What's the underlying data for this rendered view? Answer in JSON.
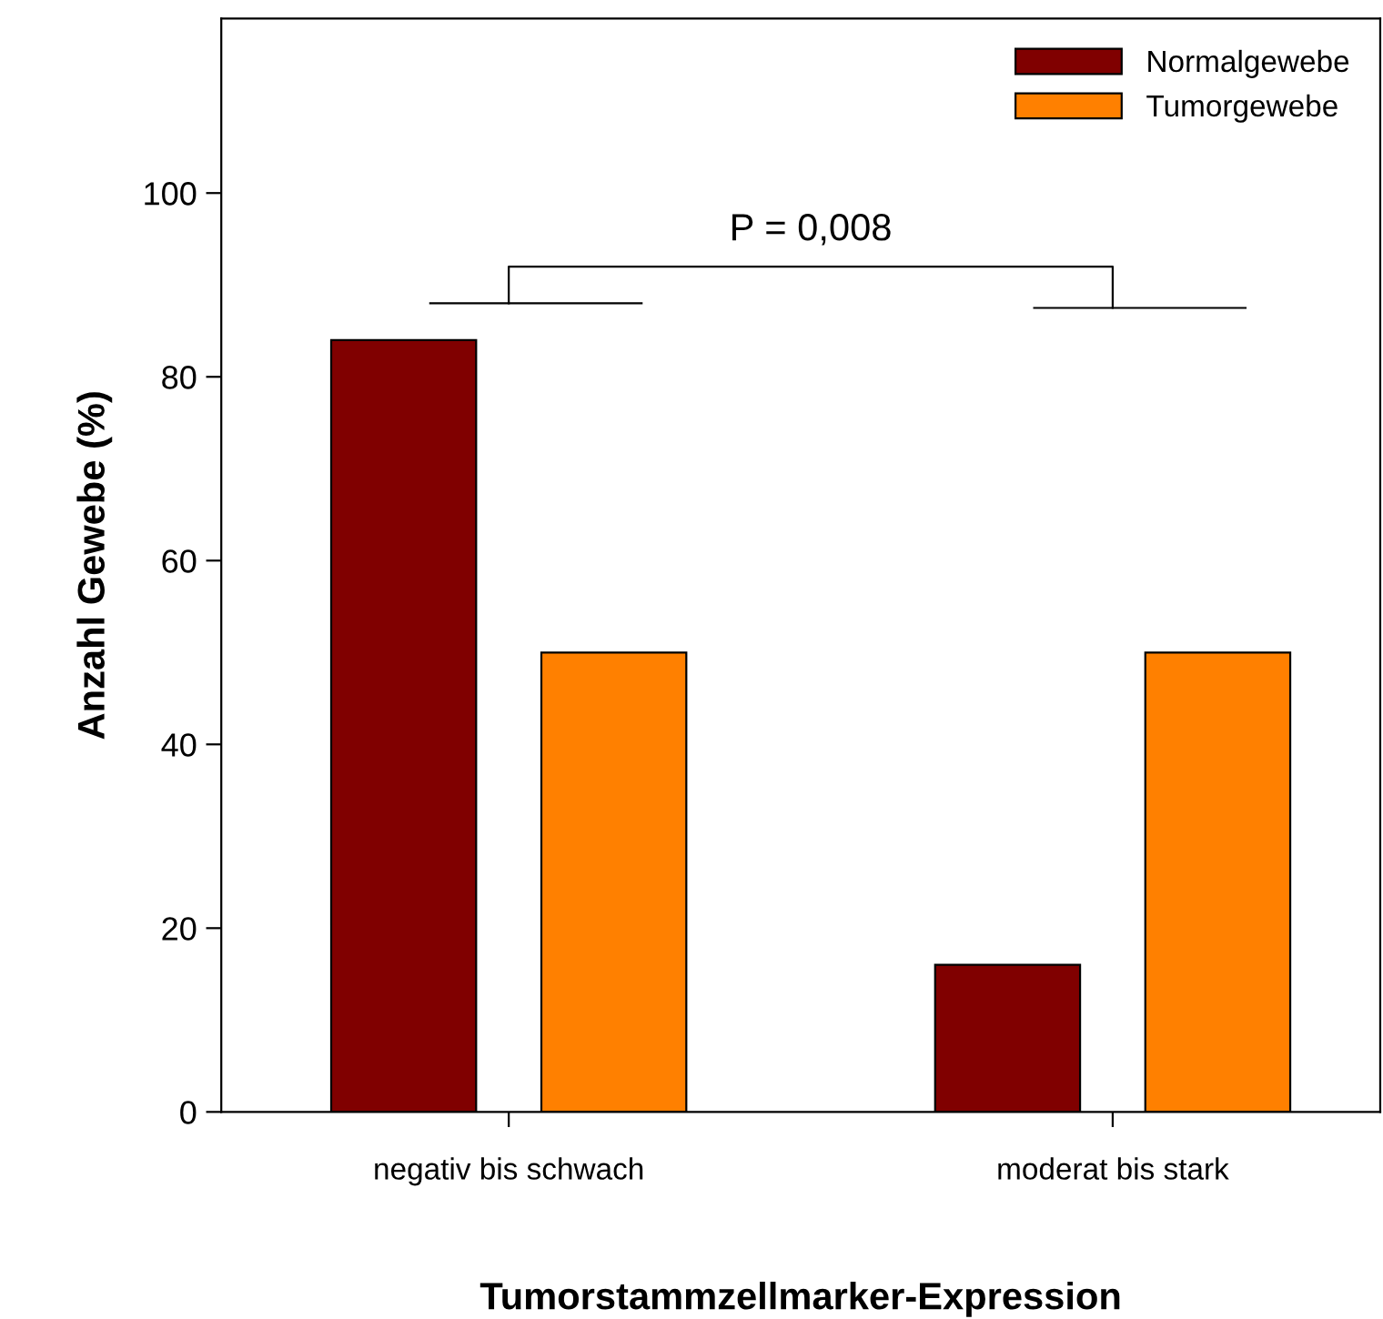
{
  "chart_data": {
    "type": "bar",
    "xlabel": "Tumorstammzellmarker-Expression",
    "ylabel": "Anzahl Gewebe (%)",
    "categories": [
      "negativ bis schwach",
      "moderat bis stark"
    ],
    "series": [
      {
        "name": "Normalgewebe",
        "color": "#800000",
        "values": [
          84,
          16
        ]
      },
      {
        "name": "Tumorgewebe",
        "color": "#ff8000",
        "values": [
          50,
          50
        ]
      }
    ],
    "ylim": [
      0,
      119
    ],
    "yticks": [
      0,
      20,
      40,
      60,
      80,
      100
    ],
    "annotations": [
      "P = 0,008"
    ],
    "legend": "top right",
    "grid": false
  }
}
